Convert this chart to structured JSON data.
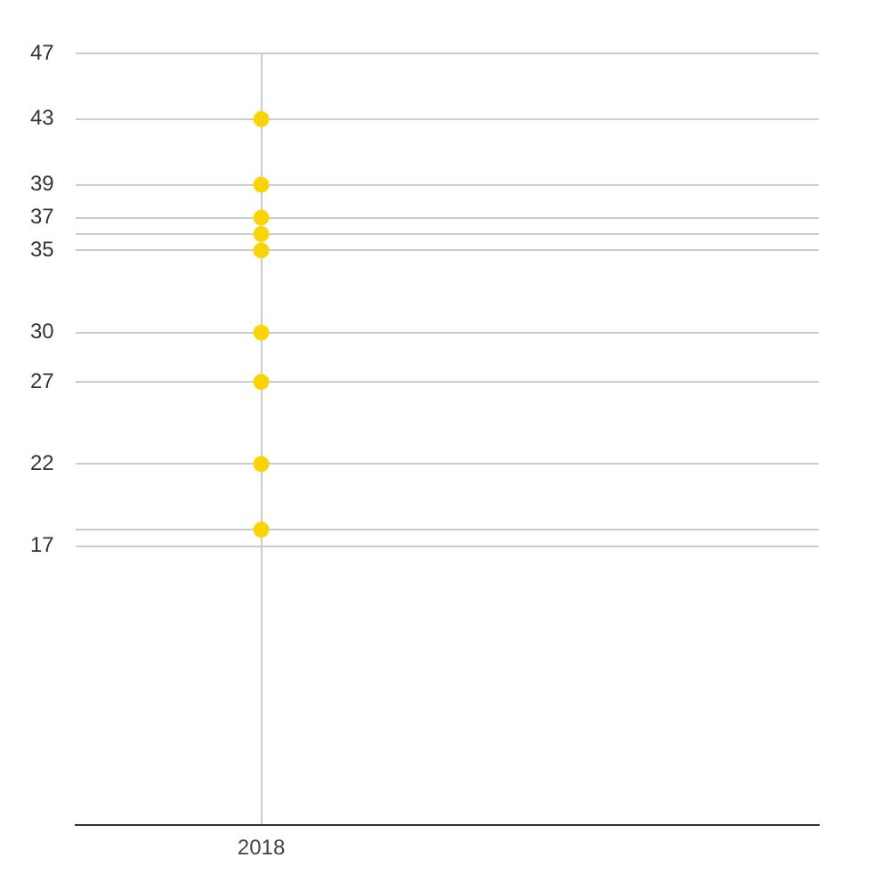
{
  "chart_data": {
    "type": "scatter",
    "categories": [
      "2018",
      null
    ],
    "series": [
      {
        "color": "#fdd400",
        "values": [
          43,
          null
        ]
      },
      {
        "color": "#fdd400",
        "values": [
          39,
          null
        ]
      },
      {
        "color": "#fdd400",
        "values": [
          37,
          null
        ]
      },
      {
        "color": "#fdd400",
        "values": [
          36,
          null
        ]
      },
      {
        "color": "#fdd400",
        "values": [
          35,
          null
        ]
      },
      {
        "color": "#fdd400",
        "values": [
          30,
          null
        ]
      },
      {
        "color": "#fdd400",
        "values": [
          27,
          null
        ]
      },
      {
        "color": "#fdd400",
        "values": [
          22,
          null
        ]
      },
      {
        "color": "#fdd400",
        "values": [
          18,
          null
        ]
      }
    ],
    "ylim": [
      0,
      47
    ],
    "yticks": [
      17,
      {
        "value": 18,
        "label": null
      },
      22,
      27,
      30,
      35,
      {
        "value": 36,
        "label": null
      },
      37,
      39,
      43,
      47
    ],
    "grid": true,
    "marker": "circle",
    "legend": false
  }
}
